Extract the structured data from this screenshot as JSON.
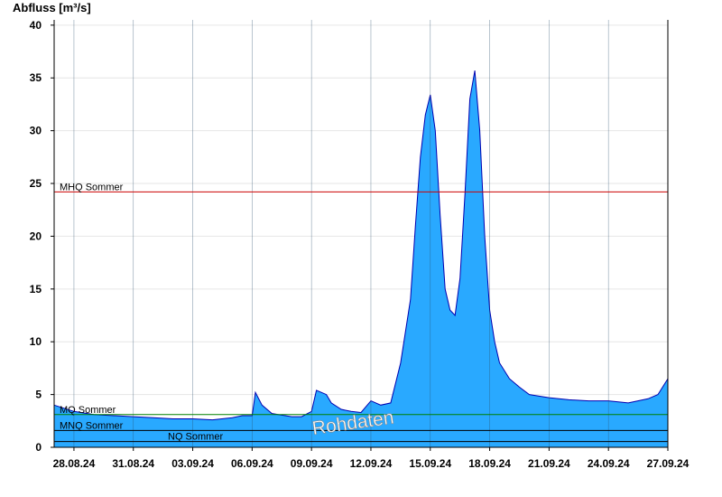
{
  "chart_data": {
    "type": "area",
    "ylabel": "Abfluss [m³/s]",
    "xlabel": "",
    "ylim": [
      0,
      40.5
    ],
    "xlim": [
      "2024-08-27",
      "2024-09-27"
    ],
    "yticks": [
      0,
      5,
      10,
      15,
      20,
      25,
      30,
      35,
      40
    ],
    "xtick_labels": [
      "28.08.24",
      "31.08.24",
      "03.09.24",
      "06.09.24",
      "09.09.24",
      "12.09.24",
      "15.09.24",
      "18.09.24",
      "21.09.24",
      "24.09.24",
      "27.09.24"
    ],
    "xtick_dates": [
      "2024-08-28",
      "2024-08-31",
      "2024-09-03",
      "2024-09-06",
      "2024-09-09",
      "2024-09-12",
      "2024-09-15",
      "2024-09-18",
      "2024-09-21",
      "2024-09-24",
      "2024-09-27"
    ],
    "grid": true,
    "watermark": "Rohdaten",
    "series": [
      {
        "x": [
          "2024-08-27",
          "2024-08-28",
          "2024-08-29",
          "2024-08-30",
          "2024-08-31",
          "2024-09-01",
          "2024-09-02",
          "2024-09-03",
          "2024-09-04",
          "2024-09-05",
          "2024-09-05T12:00",
          "2024-09-06",
          "2024-09-06T04:00",
          "2024-09-06T12:00",
          "2024-09-07",
          "2024-09-08",
          "2024-09-08T12:00",
          "2024-09-09",
          "2024-09-09T06:00",
          "2024-09-09T18:00",
          "2024-09-10",
          "2024-09-10T12:00",
          "2024-09-11",
          "2024-09-11T12:00",
          "2024-09-12",
          "2024-09-12T12:00",
          "2024-09-13",
          "2024-09-13T12:00",
          "2024-09-14",
          "2024-09-14T06:00",
          "2024-09-14T12:00",
          "2024-09-14T18:00",
          "2024-09-15",
          "2024-09-15T06:00",
          "2024-09-15T12:00",
          "2024-09-15T18:00",
          "2024-09-16",
          "2024-09-16T06:00",
          "2024-09-16T12:00",
          "2024-09-16T18:00",
          "2024-09-17",
          "2024-09-17T06:00",
          "2024-09-17T12:00",
          "2024-09-17T18:00",
          "2024-09-18",
          "2024-09-18T06:00",
          "2024-09-18T12:00",
          "2024-09-19",
          "2024-09-19T12:00",
          "2024-09-20",
          "2024-09-21",
          "2024-09-22",
          "2024-09-23",
          "2024-09-24",
          "2024-09-25",
          "2024-09-26",
          "2024-09-26T12:00",
          "2024-09-27"
        ],
        "values": [
          4.0,
          3.4,
          3.1,
          3.0,
          2.9,
          2.8,
          2.7,
          2.7,
          2.6,
          2.8,
          3.0,
          3.0,
          5.2,
          4.0,
          3.2,
          2.9,
          2.9,
          3.4,
          5.4,
          5.0,
          4.2,
          3.6,
          3.4,
          3.3,
          4.4,
          4.0,
          4.2,
          8.0,
          14.0,
          21.0,
          27.5,
          31.5,
          33.4,
          30.0,
          22.0,
          15.0,
          13.0,
          12.5,
          16.0,
          24.0,
          33.0,
          35.7,
          30.0,
          20.0,
          13.0,
          10.0,
          8.0,
          6.5,
          5.7,
          5.0,
          4.7,
          4.5,
          4.4,
          4.4,
          4.2,
          4.6,
          5.0,
          6.5
        ],
        "color": "#29a9ff",
        "line_color": "#0000b0"
      }
    ],
    "reference_lines": [
      {
        "label": "MHQ Sommer",
        "value": 24.2,
        "color": "#cc0000"
      },
      {
        "label": "MQ Sommer",
        "value": 3.1,
        "color": "#008000"
      },
      {
        "label": "MNQ Sommer",
        "value": 1.6,
        "color": "#000000"
      },
      {
        "label": "NQ Sommer",
        "value": 0.55,
        "color": "#000000"
      }
    ]
  }
}
